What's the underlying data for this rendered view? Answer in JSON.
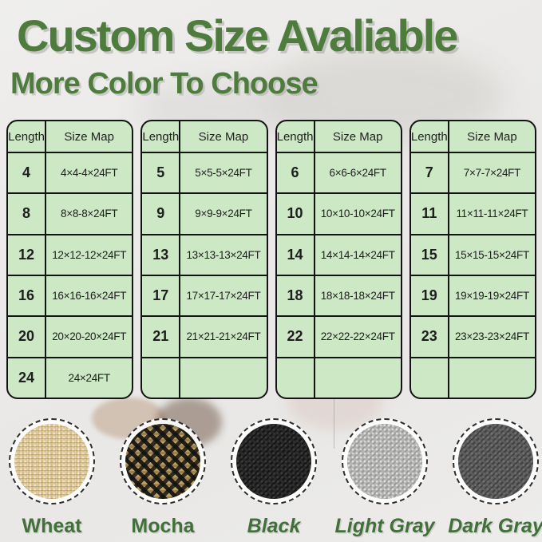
{
  "page": {
    "title": "Custom Size Avaliable",
    "subtitle": "More Color To Choose"
  },
  "table_headers": [
    "Length",
    "Size Map"
  ],
  "tables": [
    {
      "rows": [
        [
          "4",
          "4×4-4×24FT"
        ],
        [
          "8",
          "8×8-8×24FT"
        ],
        [
          "12",
          "12×12-12×24FT"
        ],
        [
          "16",
          "16×16-16×24FT"
        ],
        [
          "20",
          "20×20-20×24FT"
        ],
        [
          "24",
          "24×24FT"
        ]
      ]
    },
    {
      "rows": [
        [
          "5",
          "5×5-5×24FT"
        ],
        [
          "9",
          "9×9-9×24FT"
        ],
        [
          "13",
          "13×13-13×24FT"
        ],
        [
          "17",
          "17×17-17×24FT"
        ],
        [
          "21",
          "21×21-21×24FT"
        ],
        [
          "",
          ""
        ]
      ]
    },
    {
      "rows": [
        [
          "6",
          "6×6-6×24FT"
        ],
        [
          "10",
          "10×10-10×24FT"
        ],
        [
          "14",
          "14×14-14×24FT"
        ],
        [
          "18",
          "18×18-18×24FT"
        ],
        [
          "22",
          "22×22-22×24FT"
        ],
        [
          "",
          ""
        ]
      ]
    },
    {
      "rows": [
        [
          "7",
          "7×7-7×24FT"
        ],
        [
          "11",
          "11×11-11×24FT"
        ],
        [
          "15",
          "15×15-15×24FT"
        ],
        [
          "19",
          "19×19-19×24FT"
        ],
        [
          "23",
          "23×23-23×24FT"
        ],
        [
          "",
          ""
        ]
      ]
    }
  ],
  "swatches": [
    {
      "label": "Wheat",
      "style": "wheat",
      "italic": false
    },
    {
      "label": "Mocha",
      "style": "mocha",
      "italic": false
    },
    {
      "label": "Black",
      "style": "black",
      "italic": true
    },
    {
      "label": "Light Gray",
      "style": "light-gray",
      "italic": true
    },
    {
      "label": "Dark Gray",
      "style": "dark-gray",
      "italic": true
    }
  ],
  "colors": {
    "title_green": "#4d7c3c",
    "label_green": "#41703a",
    "table_bg": "#cce8c4",
    "table_border": "#141414",
    "swatch_wheat": "#d9bf87",
    "swatch_mocha": "#bfa066",
    "swatch_black": "#282828",
    "swatch_light_gray": "#b5b5b3",
    "swatch_dark_gray": "#5d5d5d"
  }
}
